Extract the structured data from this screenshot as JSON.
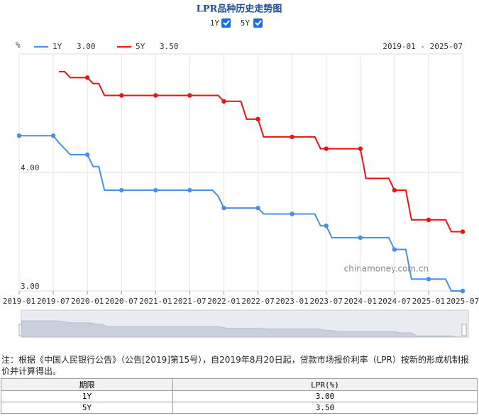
{
  "chart_data": {
    "type": "line",
    "title": "LPR品种历史走势图",
    "y_unit": "%",
    "range_label": "2019-01 - 2025-07",
    "watermark": "chinamoney.com.cn",
    "x": [
      "2019-01",
      "2019-02",
      "2019-03",
      "2019-04",
      "2019-05",
      "2019-06",
      "2019-07",
      "2019-08",
      "2019-09",
      "2019-10",
      "2019-11",
      "2019-12",
      "2020-01",
      "2020-02",
      "2020-03",
      "2020-04",
      "2020-05",
      "2020-06",
      "2020-07",
      "2020-08",
      "2020-09",
      "2020-10",
      "2020-11",
      "2020-12",
      "2021-01",
      "2021-02",
      "2021-03",
      "2021-04",
      "2021-05",
      "2021-06",
      "2021-07",
      "2021-08",
      "2021-09",
      "2021-10",
      "2021-11",
      "2021-12",
      "2022-01",
      "2022-02",
      "2022-03",
      "2022-04",
      "2022-05",
      "2022-06",
      "2022-07",
      "2022-08",
      "2022-09",
      "2022-10",
      "2022-11",
      "2022-12",
      "2023-01",
      "2023-02",
      "2023-03",
      "2023-04",
      "2023-05",
      "2023-06",
      "2023-07",
      "2023-08",
      "2023-09",
      "2023-10",
      "2023-11",
      "2023-12",
      "2024-01",
      "2024-02",
      "2024-03",
      "2024-04",
      "2024-05",
      "2024-06",
      "2024-07",
      "2024-08",
      "2024-09",
      "2024-10",
      "2024-11",
      "2024-12",
      "2025-01",
      "2025-02",
      "2025-03",
      "2025-04",
      "2025-05",
      "2025-06",
      "2025-07"
    ],
    "xticks": [
      "2019-01",
      "2019-07",
      "2020-01",
      "2020-07",
      "2021-01",
      "2021-07",
      "2022-01",
      "2022-07",
      "2023-01",
      "2023-07",
      "2024-01",
      "2024-07",
      "2025-01",
      "2025-07"
    ],
    "ylim": [
      3,
      5
    ],
    "yticks": [
      {
        "value": 3,
        "label": "3.00"
      },
      {
        "value": 4,
        "label": "4.00"
      }
    ],
    "grid": true,
    "series": [
      {
        "name": "1Y",
        "color": "#4a90e2",
        "last_label": "3.00",
        "values": [
          4.31,
          4.31,
          4.31,
          4.31,
          4.31,
          4.31,
          4.31,
          4.25,
          4.2,
          4.15,
          4.15,
          4.15,
          4.15,
          4.05,
          4.05,
          3.85,
          3.85,
          3.85,
          3.85,
          3.85,
          3.85,
          3.85,
          3.85,
          3.85,
          3.85,
          3.85,
          3.85,
          3.85,
          3.85,
          3.85,
          3.85,
          3.85,
          3.85,
          3.85,
          3.85,
          3.8,
          3.7,
          3.7,
          3.7,
          3.7,
          3.7,
          3.7,
          3.7,
          3.65,
          3.65,
          3.65,
          3.65,
          3.65,
          3.65,
          3.65,
          3.65,
          3.65,
          3.65,
          3.55,
          3.55,
          3.45,
          3.45,
          3.45,
          3.45,
          3.45,
          3.45,
          3.45,
          3.45,
          3.45,
          3.45,
          3.45,
          3.35,
          3.35,
          3.35,
          3.1,
          3.1,
          3.1,
          3.1,
          3.1,
          3.1,
          3.1,
          3,
          3,
          3
        ]
      },
      {
        "name": "5Y",
        "color": "#ee1111",
        "last_label": "3.50",
        "values": [
          null,
          null,
          null,
          null,
          null,
          null,
          null,
          4.85,
          4.85,
          4.8,
          4.8,
          4.8,
          4.8,
          4.75,
          4.75,
          4.65,
          4.65,
          4.65,
          4.65,
          4.65,
          4.65,
          4.65,
          4.65,
          4.65,
          4.65,
          4.65,
          4.65,
          4.65,
          4.65,
          4.65,
          4.65,
          4.65,
          4.65,
          4.65,
          4.65,
          4.65,
          4.6,
          4.6,
          4.6,
          4.6,
          4.45,
          4.45,
          4.45,
          4.3,
          4.3,
          4.3,
          4.3,
          4.3,
          4.3,
          4.3,
          4.3,
          4.3,
          4.3,
          4.2,
          4.2,
          4.2,
          4.2,
          4.2,
          4.2,
          4.2,
          4.2,
          3.95,
          3.95,
          3.95,
          3.95,
          3.95,
          3.85,
          3.85,
          3.85,
          3.6,
          3.6,
          3.6,
          3.6,
          3.6,
          3.6,
          3.6,
          3.5,
          3.5,
          3.5
        ]
      }
    ]
  },
  "note": "注：根据《中国人民银行公告》（公告[2019]第15号），自2019年8月20日起，贷款市场报价利率（LPR）按新的形成机制报价并计算得出。",
  "table": {
    "header": [
      "期限",
      "LPR(%)"
    ],
    "rows": [
      [
        "1Y",
        "3.00"
      ],
      [
        "5Y",
        "3.50"
      ]
    ]
  }
}
